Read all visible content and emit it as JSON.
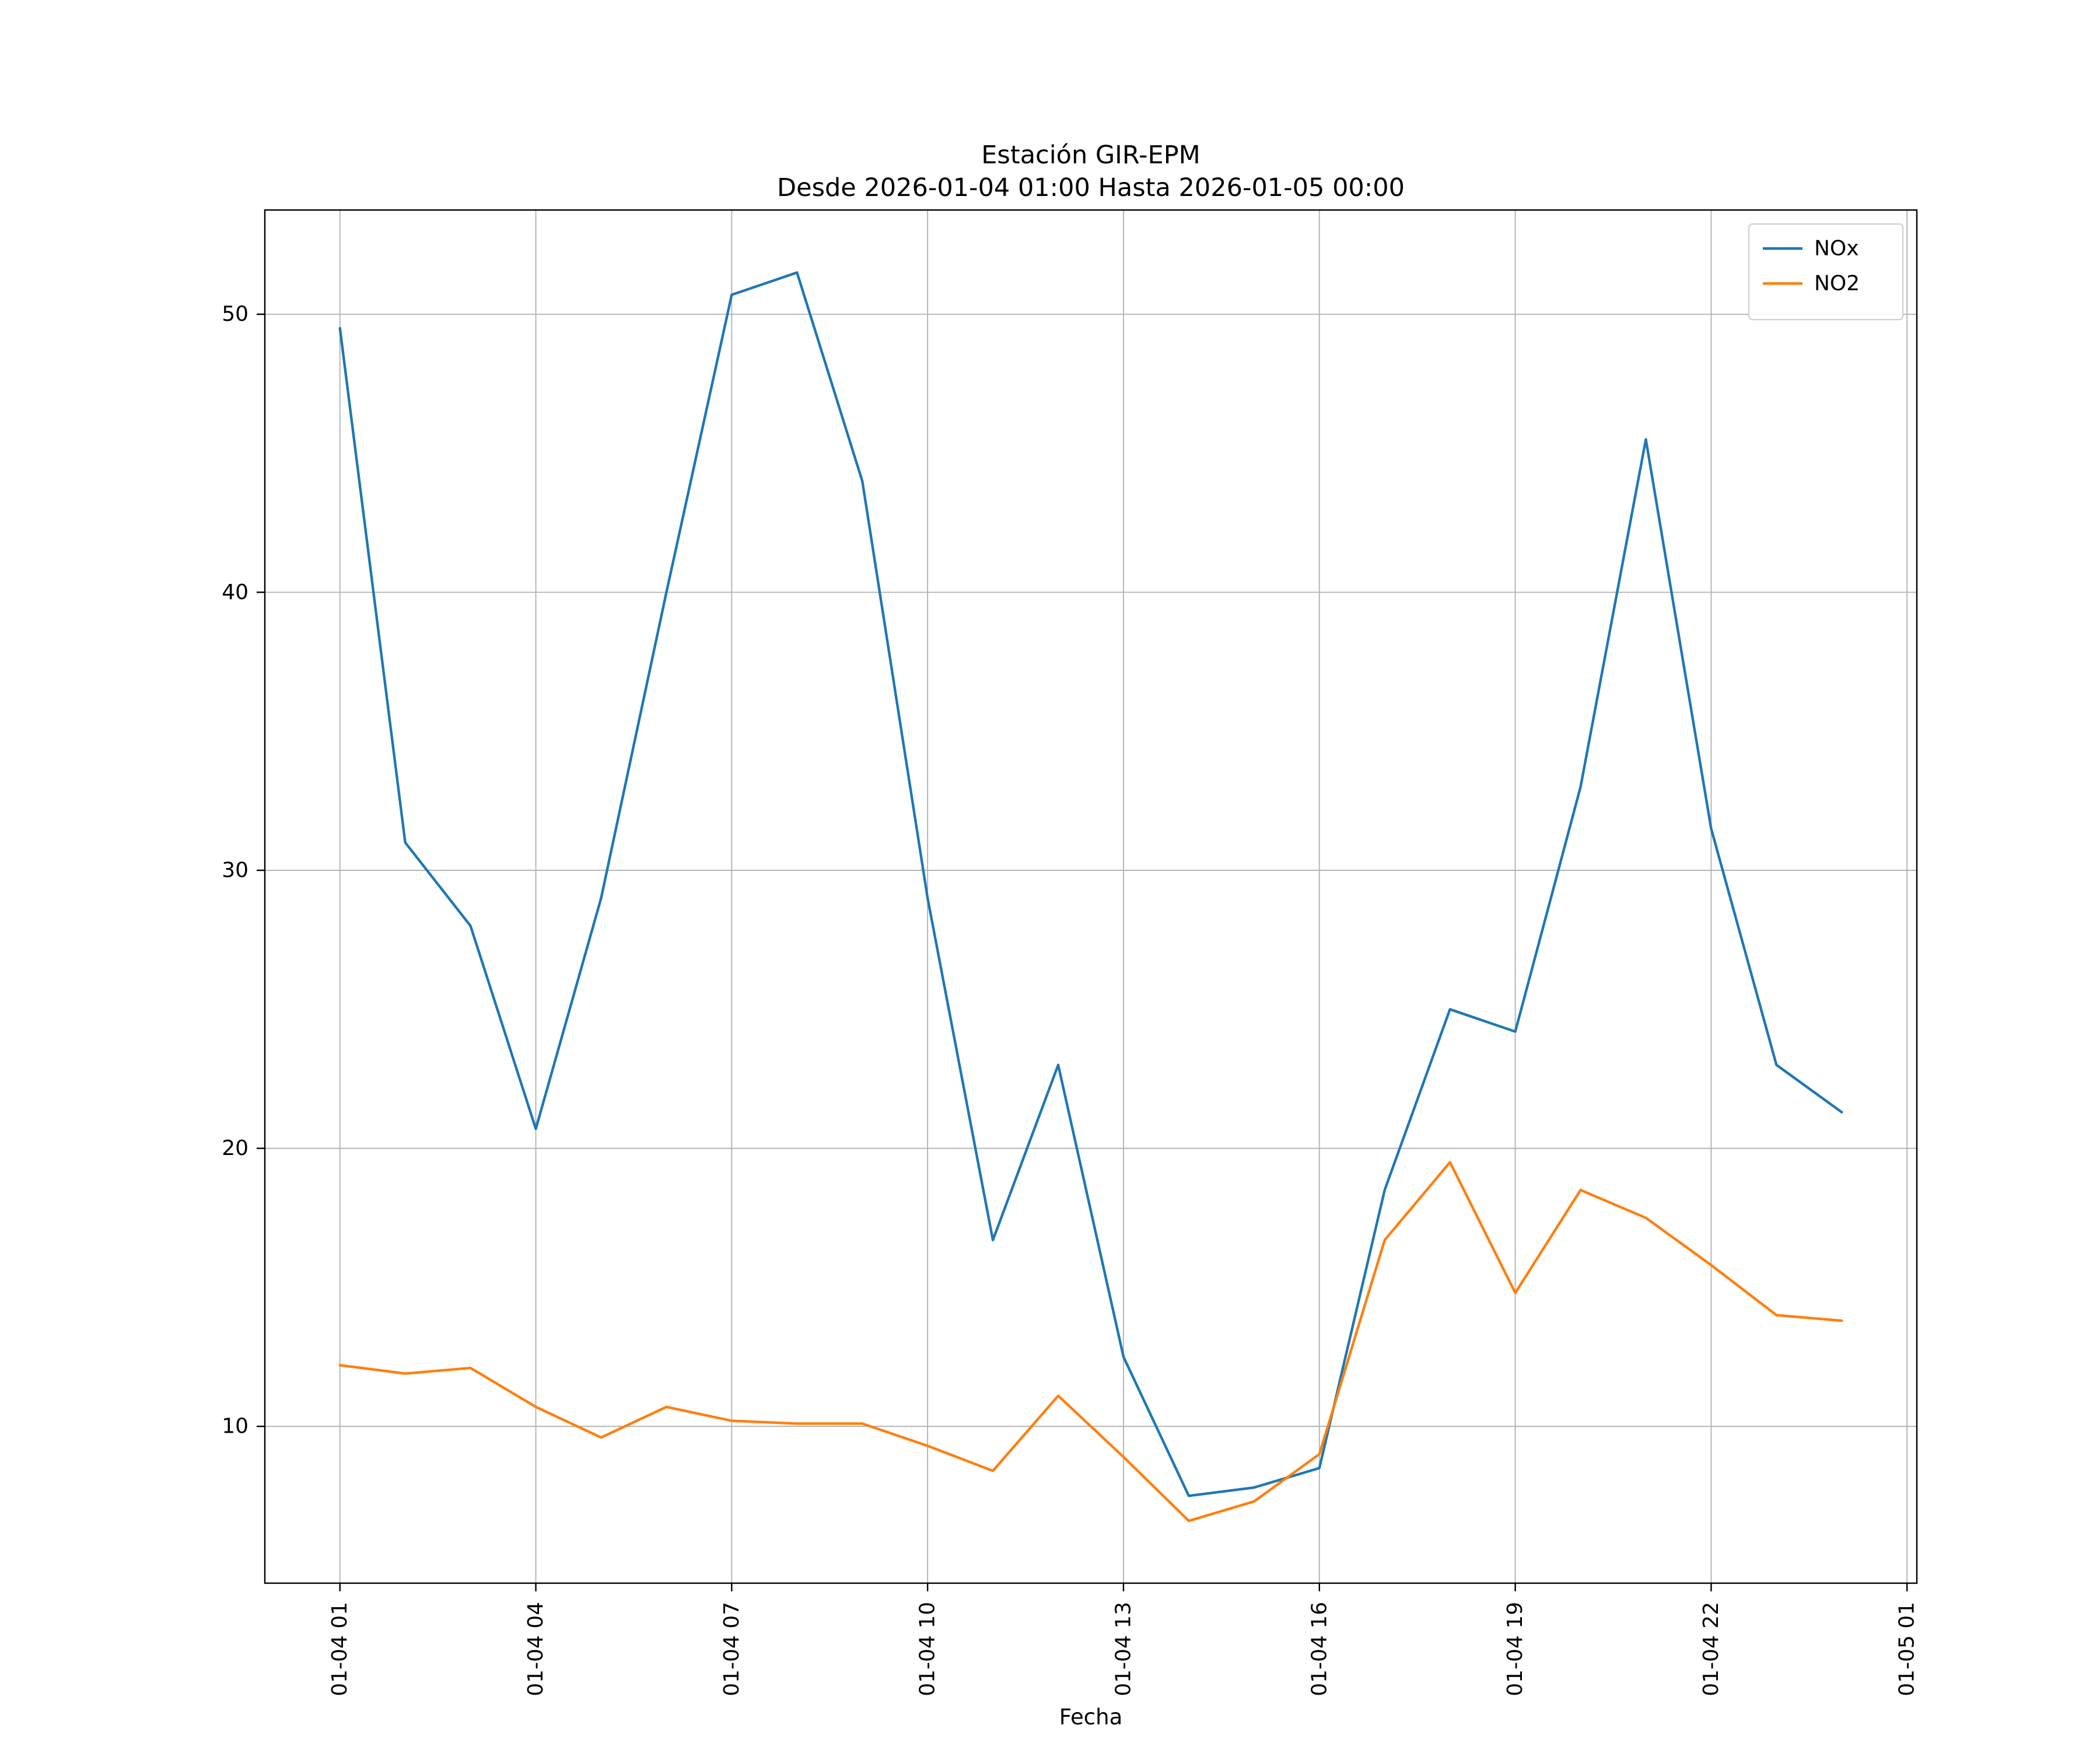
{
  "figure": {
    "title": "Estación GIR-EPM",
    "subtitle": "Desde 2026-01-04 01:00 Hasta 2026-01-05 00:00",
    "xlabel": "Fecha"
  },
  "chart_data": {
    "type": "line",
    "title": "Estación GIR-EPM",
    "subtitle": "Desde 2026-01-04 01:00 Hasta 2026-01-05 00:00",
    "xlabel": "Fecha",
    "ylabel": "",
    "x": [
      "01-04 01",
      "01-04 02",
      "01-04 03",
      "01-04 04",
      "01-04 05",
      "01-04 06",
      "01-04 07",
      "01-04 08",
      "01-04 09",
      "01-04 10",
      "01-04 11",
      "01-04 12",
      "01-04 13",
      "01-04 14",
      "01-04 15",
      "01-04 16",
      "01-04 17",
      "01-04 18",
      "01-04 19",
      "01-04 20",
      "01-04 21",
      "01-04 22",
      "01-04 23",
      "01-05 00"
    ],
    "x_hours": [
      1,
      2,
      3,
      4,
      5,
      6,
      7,
      8,
      9,
      10,
      11,
      12,
      13,
      14,
      15,
      16,
      17,
      18,
      19,
      20,
      21,
      22,
      23,
      24
    ],
    "series": [
      {
        "name": "NOx",
        "color": "#1f77b4",
        "values": [
          49.5,
          31.0,
          28.0,
          20.7,
          29.0,
          40.0,
          50.7,
          51.5,
          44.0,
          29.0,
          16.7,
          23.0,
          12.5,
          7.5,
          7.8,
          8.5,
          18.5,
          25.0,
          24.2,
          33.0,
          45.5,
          31.5,
          23.0,
          21.3
        ]
      },
      {
        "name": "NO2",
        "color": "#ff7f0e",
        "values": [
          12.2,
          11.9,
          12.1,
          10.7,
          9.6,
          10.7,
          10.2,
          10.1,
          10.1,
          9.3,
          8.4,
          11.1,
          8.9,
          6.6,
          7.3,
          9.0,
          16.7,
          19.5,
          14.8,
          18.5,
          17.5,
          15.8,
          14.0,
          13.8
        ]
      }
    ],
    "xticks": {
      "hours": [
        1,
        4,
        7,
        10,
        13,
        16,
        19,
        22,
        25
      ],
      "labels": [
        "01-04 01",
        "01-04 04",
        "01-04 07",
        "01-04 10",
        "01-04 13",
        "01-04 16",
        "01-04 19",
        "01-04 22",
        "01-05 01"
      ]
    },
    "yticks": [
      10,
      20,
      30,
      40,
      50
    ],
    "xlim": [
      -0.15,
      25.15
    ],
    "ylim": [
      4.36,
      53.75
    ],
    "grid": true,
    "grid_color": "#b0b0b0",
    "spine_color": "#000000",
    "legend_position": "upper right",
    "legend_entries": [
      "NOx",
      "NO2"
    ]
  }
}
